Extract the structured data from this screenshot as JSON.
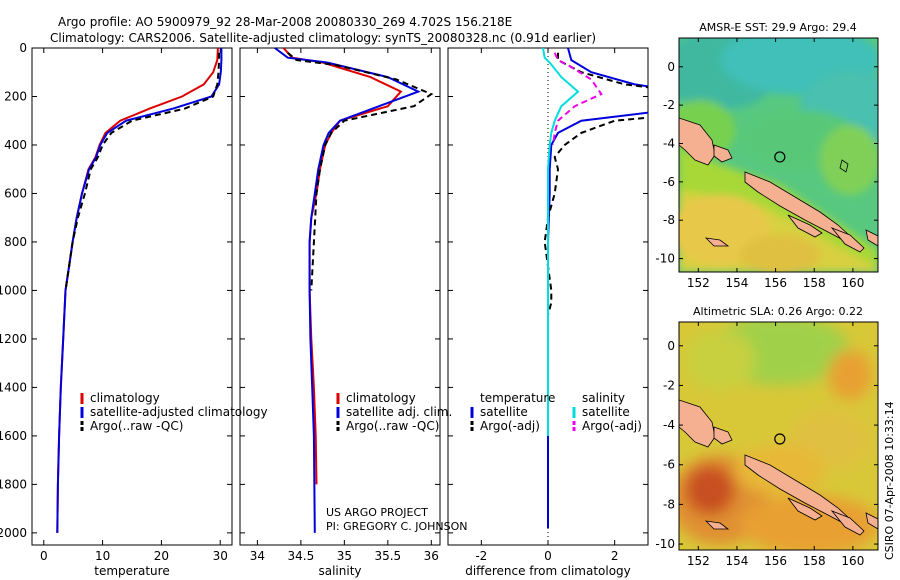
{
  "header": {
    "line1": "Argo profile: AO 5900979_92 28-Mar-2008 20080330_269 4.702S 156.218E",
    "line2": "Climatology: CARS2006. Satellite-adjusted climatology: synTS_20080328.nc (0.91d earlier)"
  },
  "credits": {
    "project": "US ARGO PROJECT",
    "pi": "PI: GREGORY C. JOHNSON",
    "stamp": "CSIRO 07-Apr-2008 10:33:14"
  },
  "colors": {
    "climatology": "#dd0000",
    "satellite": "#0000dd",
    "argo": "#000000",
    "salinity_satellite": "#00dddd",
    "salinity_argo": "#ee00ee",
    "land": "#f4b090"
  },
  "chart_data": [
    {
      "type": "line",
      "panel": "temperature",
      "xlabel": "temperature",
      "ylabel": "",
      "xlim": [
        -2,
        32
      ],
      "ylim": [
        0,
        2050
      ],
      "y_reversed": true,
      "xticks": [
        0,
        10,
        20,
        30
      ],
      "yticks": [
        0,
        200,
        400,
        600,
        800,
        1000,
        1200,
        1400,
        1600,
        1800,
        2000
      ],
      "legend": [
        "climatology",
        "satellite-adjusted climatology",
        "Argo(..raw -QC)"
      ],
      "series": [
        {
          "name": "climatology",
          "color": "#dd0000",
          "dash": "",
          "x": [
            29.6,
            29.5,
            28.8,
            27.2,
            23.5,
            18.0,
            13.0,
            10.5,
            9.5,
            8.8,
            7.6,
            6.5,
            5.6,
            4.9,
            4.3,
            3.7,
            3.3,
            2.9,
            2.6,
            2.4,
            2.3
          ],
          "y": [
            0,
            50,
            100,
            150,
            200,
            250,
            300,
            350,
            400,
            450,
            500,
            600,
            700,
            800,
            900,
            1000,
            1200,
            1400,
            1600,
            1800,
            2000
          ]
        },
        {
          "name": "satellite-adjusted climatology",
          "color": "#0000dd",
          "dash": "",
          "x": [
            30.2,
            30.2,
            30.1,
            29.8,
            28.5,
            22.0,
            14.0,
            10.8,
            9.6,
            8.9,
            7.7,
            6.5,
            5.6,
            4.9,
            4.3,
            3.7,
            3.3,
            2.9,
            2.6,
            2.4,
            2.3
          ],
          "y": [
            0,
            50,
            100,
            150,
            200,
            250,
            300,
            350,
            400,
            450,
            500,
            600,
            700,
            800,
            900,
            1000,
            1200,
            1400,
            1600,
            1800,
            2000
          ]
        },
        {
          "name": "Argo(..raw -QC)",
          "color": "#000000",
          "dash": "6 4",
          "x": [
            29.8,
            29.8,
            29.7,
            29.5,
            28.8,
            24.0,
            15.0,
            11.5,
            10.0,
            9.2,
            8.0,
            7.0,
            5.8,
            4.9,
            4.3,
            3.7
          ],
          "y": [
            20,
            50,
            100,
            150,
            200,
            250,
            300,
            350,
            400,
            450,
            500,
            600,
            700,
            800,
            900,
            1000
          ]
        }
      ]
    },
    {
      "type": "line",
      "panel": "salinity",
      "xlabel": "salinity",
      "ylabel": "",
      "xlim": [
        33.8,
        36.1
      ],
      "ylim": [
        0,
        2050
      ],
      "y_reversed": true,
      "xticks": [
        34,
        34.5,
        35,
        35.5,
        36
      ],
      "legend": [
        "climatology",
        "satellite adj. clim.",
        "Argo(..raw -QC)"
      ],
      "series": [
        {
          "name": "climatology",
          "color": "#dd0000",
          "dash": "",
          "x": [
            34.3,
            34.4,
            34.75,
            35.3,
            35.65,
            35.5,
            34.95,
            34.85,
            34.78,
            34.72,
            34.68,
            34.62,
            34.6,
            34.6,
            34.62,
            34.65,
            34.67,
            34.68
          ],
          "y": [
            0,
            40,
            60,
            120,
            180,
            240,
            300,
            350,
            400,
            500,
            600,
            700,
            800,
            1000,
            1200,
            1400,
            1600,
            1800
          ]
        },
        {
          "name": "satellite adj. clim.",
          "color": "#0000dd",
          "dash": "",
          "x": [
            34.2,
            34.35,
            34.8,
            35.5,
            35.85,
            35.4,
            34.95,
            34.82,
            34.76,
            34.7,
            34.66,
            34.62,
            34.6,
            34.6,
            34.61,
            34.63,
            34.65,
            34.66
          ],
          "y": [
            0,
            40,
            60,
            120,
            180,
            240,
            300,
            350,
            400,
            500,
            600,
            700,
            800,
            1000,
            1200,
            1400,
            1600,
            2000
          ]
        },
        {
          "name": "Argo(..raw -QC)",
          "color": "#000000",
          "dash": "6 4",
          "x": [
            34.35,
            34.45,
            34.9,
            35.6,
            36.0,
            35.8,
            35.0,
            34.85,
            34.78,
            34.72,
            34.68,
            34.65,
            34.62
          ],
          "y": [
            20,
            50,
            70,
            130,
            190,
            240,
            300,
            350,
            400,
            500,
            600,
            800,
            1000
          ]
        }
      ]
    },
    {
      "type": "line",
      "panel": "difference",
      "xlabel": "difference from climatology",
      "ylabel": "",
      "xlim": [
        -3,
        3
      ],
      "ylim": [
        0,
        2050
      ],
      "y_reversed": true,
      "xticks": [
        -2,
        0,
        2
      ],
      "legend_headers": [
        "temperature",
        "salinity"
      ],
      "legend": [
        "satellite",
        "Argo(-adj)",
        "satellite",
        "Argo(-adj)"
      ],
      "series": [
        {
          "name": "satellite",
          "group": "temperature",
          "color": "#0000dd",
          "dash": "",
          "x": [
            0.6,
            0.7,
            1.3,
            2.6,
            5.0,
            4.0,
            1.0,
            0.3,
            0.1,
            0.05,
            0.05,
            0.0,
            0.0,
            0.0,
            0.0,
            0.0,
            0.0,
            0.0
          ],
          "y": [
            0,
            50,
            100,
            150,
            200,
            250,
            300,
            350,
            400,
            500,
            600,
            800,
            1000,
            1200,
            1400,
            1600,
            1800,
            1980
          ]
        },
        {
          "name": "Argo(-adj)",
          "group": "temperature",
          "color": "#000000",
          "dash": "6 4",
          "x": [
            0.3,
            0.3,
            1.0,
            2.3,
            5.3,
            6.0,
            2.0,
            1.0,
            0.5,
            0.2,
            0.3,
            0.2,
            0.0,
            -0.1,
            0.0,
            0.1,
            0.1,
            0.0
          ],
          "y": [
            20,
            50,
            100,
            150,
            200,
            250,
            300,
            350,
            400,
            450,
            500,
            600,
            700,
            800,
            900,
            1000,
            1050,
            1100
          ]
        },
        {
          "name": "satellite",
          "group": "salinity",
          "color": "#00dddd",
          "dash": "",
          "x": [
            -0.15,
            -0.1,
            0.05,
            0.4,
            0.9,
            0.4,
            0.2,
            0.1,
            0.05,
            0.0,
            0.0,
            0.0,
            0.0,
            0.0,
            0.0,
            0.0
          ],
          "y": [
            0,
            40,
            60,
            120,
            180,
            240,
            300,
            350,
            400,
            500,
            600,
            800,
            1000,
            1200,
            1400,
            1600
          ]
        },
        {
          "name": "Argo(-adj)",
          "group": "salinity",
          "color": "#ee00ee",
          "dash": "6 4",
          "x": [
            0.2,
            0.3,
            0.6,
            1.3,
            1.6,
            0.8,
            0.3,
            0.2,
            0.15
          ],
          "y": [
            20,
            50,
            70,
            130,
            190,
            240,
            300,
            350,
            400
          ]
        }
      ]
    },
    {
      "type": "heatmap",
      "panel": "map-sst",
      "title": "AMSR-E SST: 29.9 Argo: 29.4",
      "xlim": [
        151,
        161.3
      ],
      "ylim": [
        -10.7,
        1.5
      ],
      "xticks": [
        152,
        154,
        156,
        158,
        160
      ],
      "yticks": [
        0,
        -2,
        -4,
        -6,
        -8,
        -10
      ],
      "argo_position": {
        "lon": 156.218,
        "lat": -4.702
      }
    },
    {
      "type": "heatmap",
      "panel": "map-sla",
      "title": "Altimetric SLA: 0.26 Argo: 0.22",
      "xlim": [
        151,
        161.3
      ],
      "ylim": [
        -10.3,
        1.2
      ],
      "xticks": [
        152,
        154,
        156,
        158,
        160
      ],
      "yticks": [
        0,
        -2,
        -4,
        -6,
        -8,
        -10
      ],
      "argo_position": {
        "lon": 156.218,
        "lat": -4.702
      }
    }
  ]
}
